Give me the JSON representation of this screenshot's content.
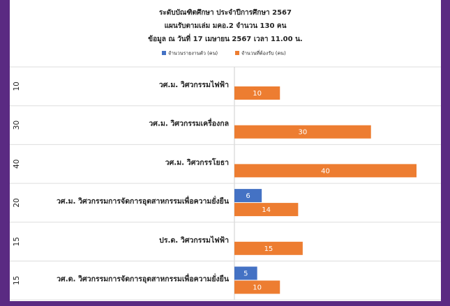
{
  "chart_data": {
    "type": "bar",
    "orientation": "horizontal",
    "title": [
      "ระดับบัณฑิตศึกษา ประจำปีการศึกษา 2567",
      "แผนรับตามเล่ม มคอ.2 จำนวน 130 คน",
      "ข้อมูล ณ วันที่ 17 เมษายน 2567 เวลา 11.00 น."
    ],
    "categories": [
      "วศ.ม. วิศวกรรมไฟฟ้า",
      "วศ.ม. วิศวกรรมเครื่องกล",
      "วศ.ม. วิศวกรรโยธา",
      "วศ.ม. วิศวกรรมการจัดการอุตสาหกรรมเพื่อความยั่งยืน",
      "ปร.ด. วิศวกรรมไฟฟ้า",
      "วศ.ด. วิศวกรรมการจัดการอุตสาหกรรมเพื่อความยั่งยืน"
    ],
    "totals": [
      10,
      30,
      40,
      20,
      15,
      15
    ],
    "series": [
      {
        "name": "จำนวนรายงานตัว (คน)",
        "color": "#4472c4",
        "values": [
          null,
          null,
          null,
          6,
          null,
          5
        ]
      },
      {
        "name": "จำนวนที่ต้องรับ (คน)",
        "color": "#ed7d31",
        "values": [
          10,
          30,
          40,
          14,
          15,
          10
        ]
      }
    ],
    "xlim": [
      0,
      40
    ]
  }
}
